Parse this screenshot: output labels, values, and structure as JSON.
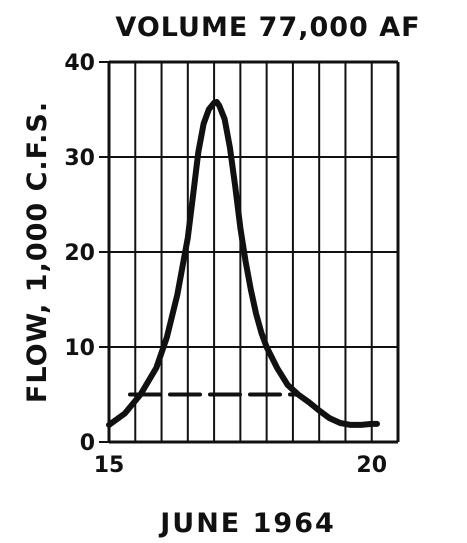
{
  "chart_data": {
    "type": "line",
    "title": "VOLUME 77,000 AF",
    "xlabel": "JUNE 1964",
    "ylabel": "FLOW, 1,000 C.F.S.",
    "xlim": [
      15,
      20.5
    ],
    "ylim": [
      0,
      40
    ],
    "x_ticks": [
      15,
      20
    ],
    "x_tick_labels": [
      "15",
      "20"
    ],
    "y_ticks": [
      0,
      10,
      20,
      30,
      40
    ],
    "y_tick_labels": [
      "0",
      "10",
      "20",
      "30",
      "40"
    ],
    "x_gridlines": [
      15,
      15.5,
      16,
      16.5,
      17,
      17.5,
      18,
      18.5,
      19,
      19.5,
      20,
      20.5
    ],
    "y_gridlines": [
      0,
      10,
      20,
      30,
      40
    ],
    "grid": true,
    "line_color": "#111111",
    "series": [
      {
        "style": "solid",
        "x": [
          15.0,
          15.3,
          15.6,
          15.9,
          16.1,
          16.3,
          16.5,
          16.6,
          16.7,
          16.8,
          16.9,
          17.0,
          17.05,
          17.1,
          17.2,
          17.3,
          17.4,
          17.5,
          17.6,
          17.7,
          17.8,
          17.9,
          18.0,
          18.2,
          18.4,
          18.6,
          18.8,
          19.0,
          19.2,
          19.4,
          19.6,
          19.8,
          20.0,
          20.1
        ],
        "y": [
          1.8,
          3.0,
          5.0,
          7.8,
          11.0,
          15.5,
          21.5,
          26.0,
          30.5,
          33.5,
          35.0,
          35.7,
          35.8,
          35.4,
          34.0,
          31.0,
          27.0,
          22.5,
          19.0,
          16.0,
          13.5,
          11.5,
          10.0,
          7.8,
          6.0,
          5.0,
          4.2,
          3.3,
          2.5,
          2.0,
          1.8,
          1.8,
          1.9,
          1.9
        ]
      },
      {
        "style": "dashed",
        "x": [
          15.4,
          18.6
        ],
        "y": [
          5.0,
          5.0
        ]
      }
    ]
  }
}
